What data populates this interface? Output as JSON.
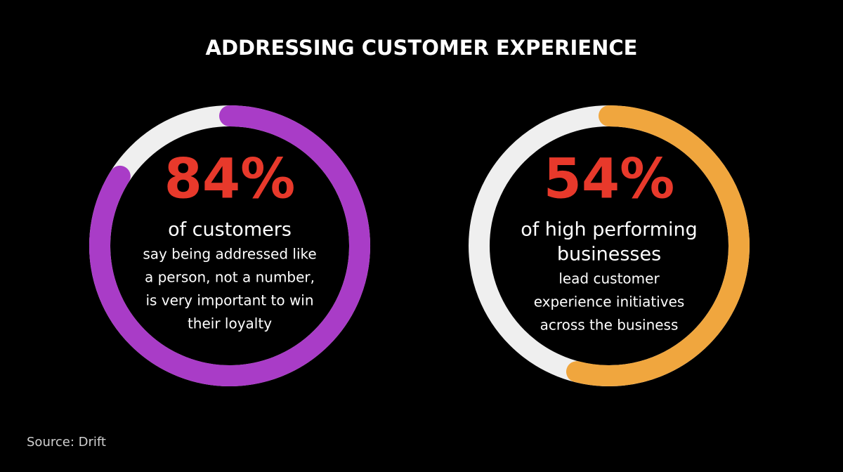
{
  "title": "ADDRESSING CUSTOMER EXPERIENCE",
  "source": "Source:  Drift",
  "chart_data": [
    {
      "type": "donut",
      "values": [
        84
      ],
      "value_labels": [
        "84%"
      ],
      "ylim": [
        0,
        100
      ],
      "color": "#a93cc7",
      "headline": [
        "of customers"
      ],
      "text": [
        "say being addressed like",
        "a person, not a number,",
        "is very important to win",
        "their loyalty"
      ]
    },
    {
      "type": "donut",
      "values": [
        54
      ],
      "value_labels": [
        "54%"
      ],
      "ylim": [
        0,
        100
      ],
      "color": "#f0a63e",
      "headline": [
        "of high performing",
        "businesses"
      ],
      "text": [
        "lead customer",
        "experience initiatives",
        "across the business"
      ]
    }
  ]
}
